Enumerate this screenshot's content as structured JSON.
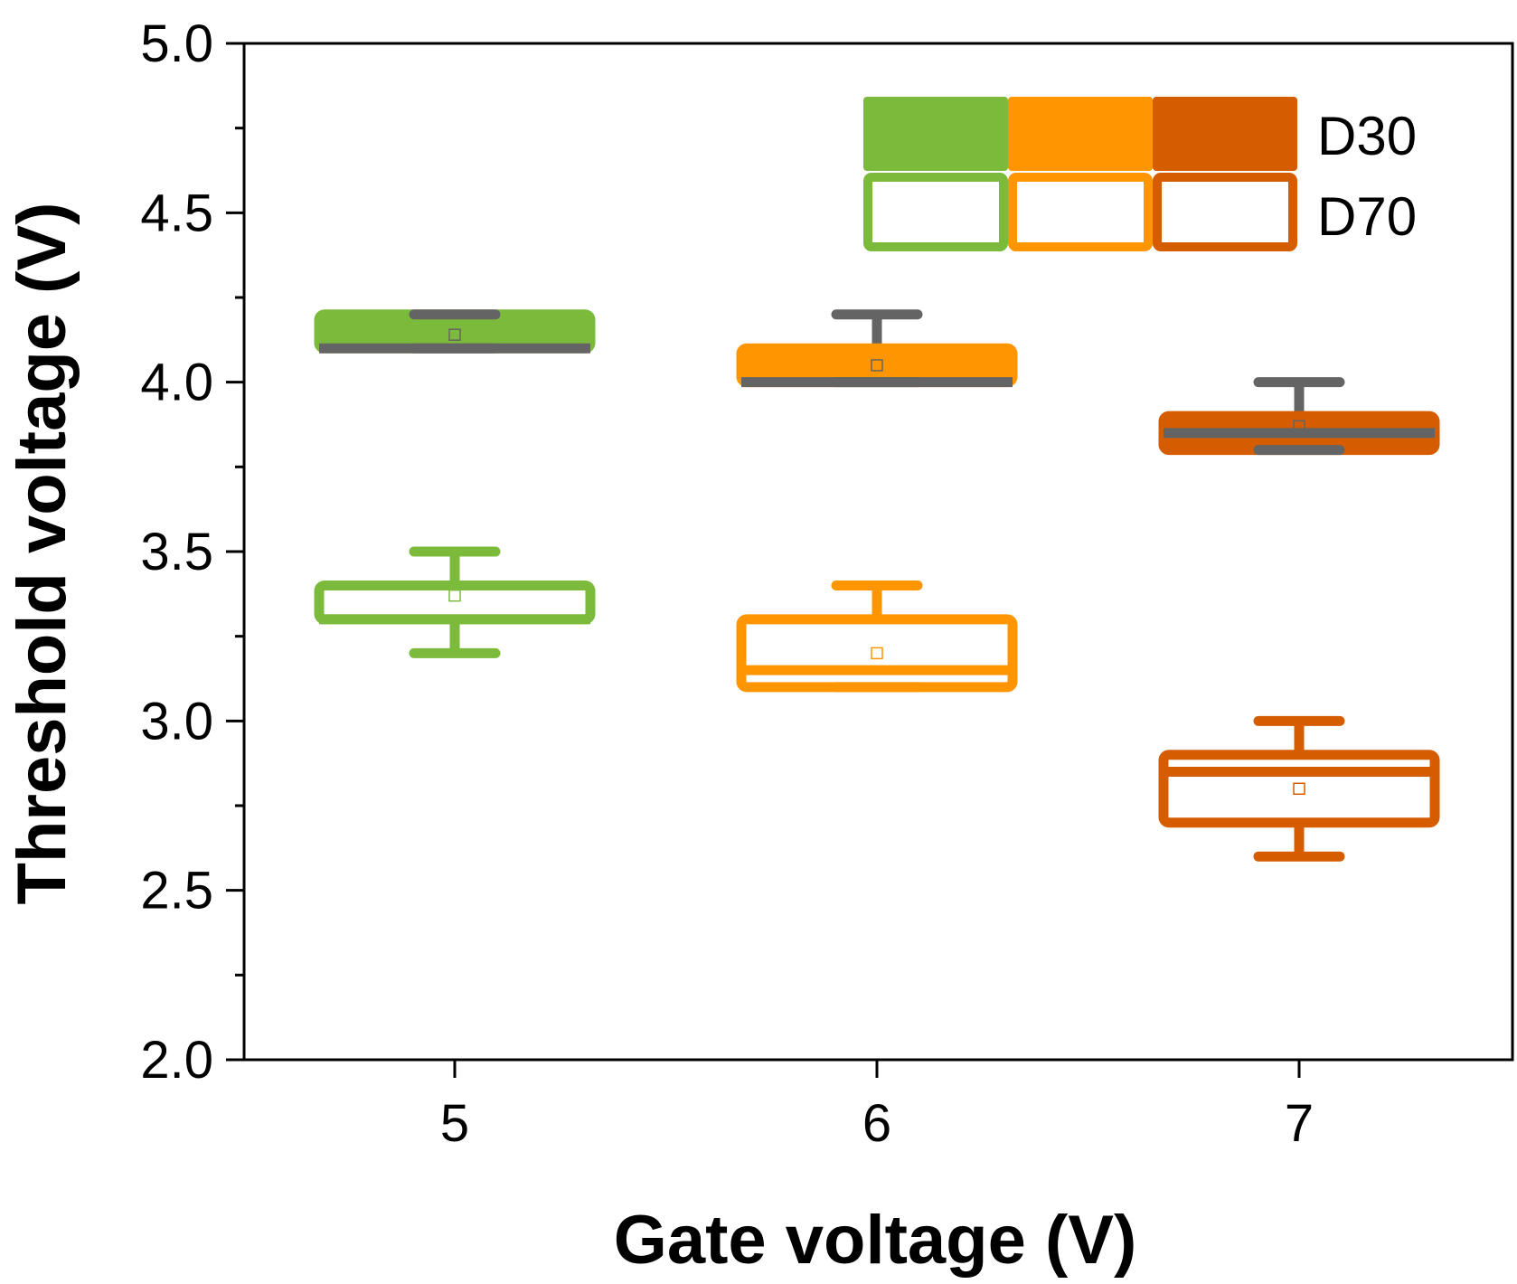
{
  "chart_data": {
    "type": "box",
    "xlabel": "Gate voltage (V)",
    "ylabel": "Threshold voltage (V)",
    "ylim": [
      2.0,
      5.0
    ],
    "yticks": [
      "2.0",
      "2.5",
      "3.0",
      "3.5",
      "4.0",
      "4.5",
      "5.0"
    ],
    "categories": [
      "5",
      "6",
      "7"
    ],
    "grid": false,
    "legend": {
      "placement": "top-right",
      "entries": [
        "D30",
        "D70"
      ]
    },
    "colors": {
      "5": "#7cba3b",
      "6": "#ff9500",
      "7": "#d55d00",
      "median_d30": "#646464"
    },
    "series": [
      {
        "name": "D30",
        "style": "filled",
        "boxes": [
          {
            "x": "5",
            "q1": 4.1,
            "median": 4.1,
            "q3": 4.2,
            "whisker_low": 4.1,
            "whisker_high": 4.2,
            "mean": 4.14
          },
          {
            "x": "6",
            "q1": 4.0,
            "median": 4.0,
            "q3": 4.1,
            "whisker_low": 4.0,
            "whisker_high": 4.2,
            "mean": 4.05
          },
          {
            "x": "7",
            "q1": 3.8,
            "median": 3.85,
            "q3": 3.9,
            "whisker_low": 3.8,
            "whisker_high": 4.0,
            "mean": 3.87
          }
        ]
      },
      {
        "name": "D70",
        "style": "hollow",
        "boxes": [
          {
            "x": "5",
            "q1": 3.3,
            "median": 3.3,
            "q3": 3.4,
            "whisker_low": 3.2,
            "whisker_high": 3.5,
            "mean": 3.37
          },
          {
            "x": "6",
            "q1": 3.1,
            "median": 3.15,
            "q3": 3.3,
            "whisker_low": 3.1,
            "whisker_high": 3.4,
            "mean": 3.2
          },
          {
            "x": "7",
            "q1": 2.7,
            "median": 2.85,
            "q3": 2.9,
            "whisker_low": 2.6,
            "whisker_high": 3.0,
            "mean": 2.8
          }
        ]
      }
    ]
  }
}
